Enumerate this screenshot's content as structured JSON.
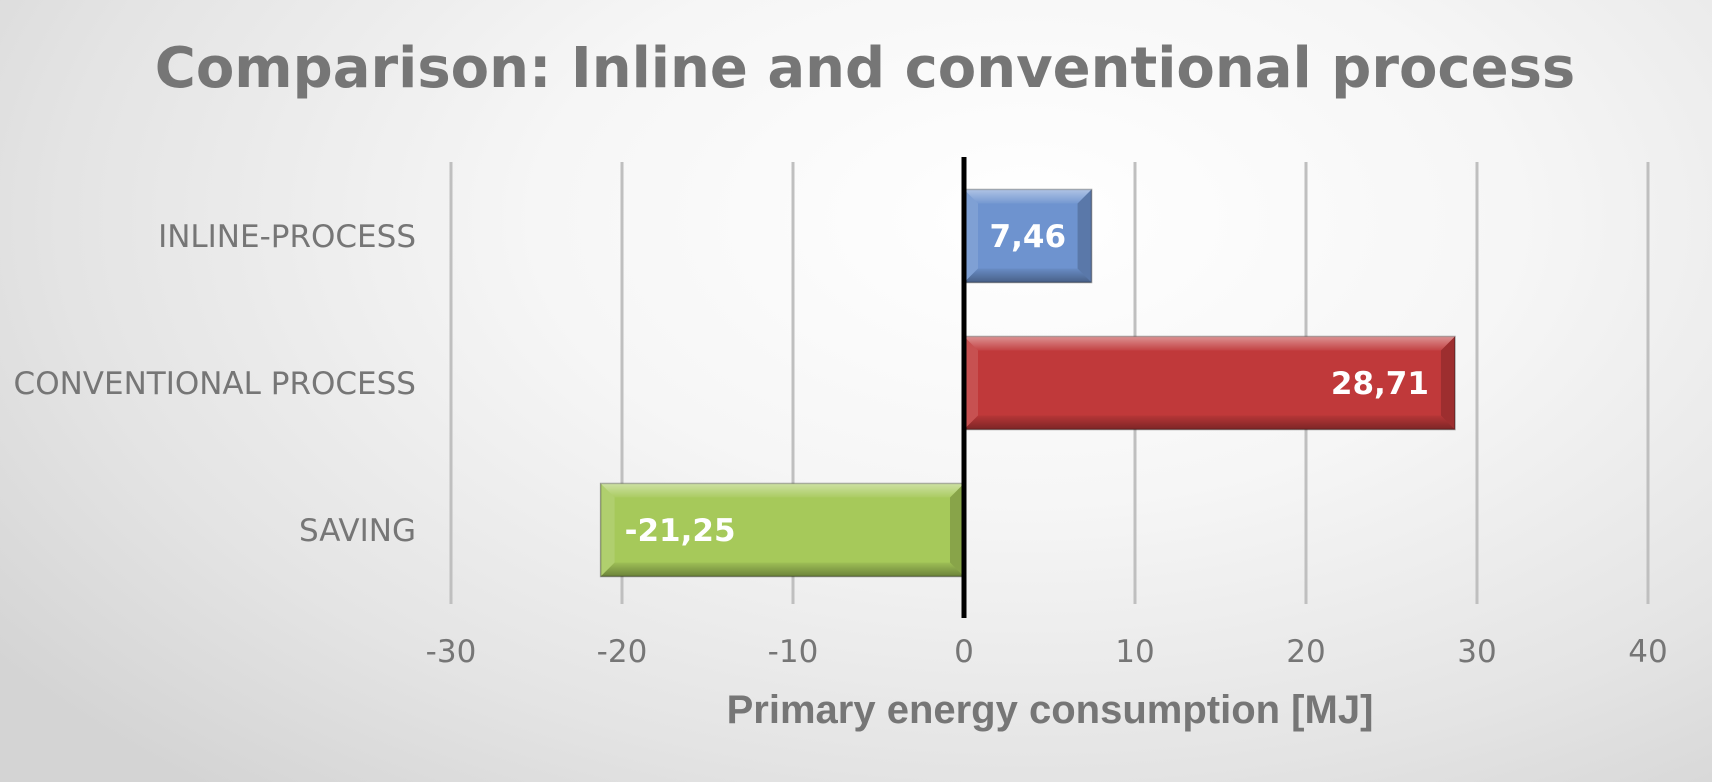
{
  "chart_data": {
    "type": "bar",
    "orientation": "horizontal",
    "title": "Comparison: Inline and conventional process",
    "xlabel": "Primary energy consumption [MJ]",
    "ylabel": "",
    "categories": [
      "INLINE-PROCESS",
      "CONVENTIONAL PROCESS",
      "SAVING"
    ],
    "values": [
      7.46,
      28.71,
      -21.25
    ],
    "data_labels": [
      "7,46",
      "28,71",
      "-21,25"
    ],
    "colors": [
      "#6e93cf",
      "#c0393a",
      "#a6c95a"
    ],
    "xlim": [
      -30,
      40
    ],
    "ticks": [
      -30,
      -20,
      -10,
      0,
      10,
      20,
      30,
      40
    ],
    "tick_labels": [
      "-30",
      "-20",
      "-10",
      "0",
      "10",
      "20",
      "30",
      "40"
    ],
    "grid": "vertical",
    "legend": "none"
  }
}
